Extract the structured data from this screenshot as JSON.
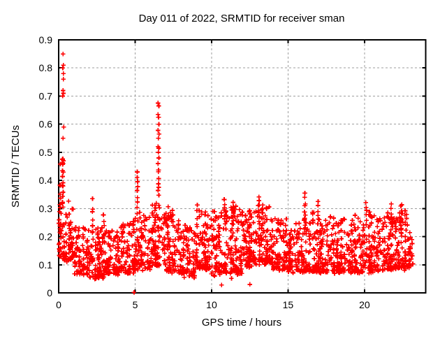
{
  "chart_data": {
    "type": "scatter",
    "title": "Day 011 of 2022, SRMTID for receiver sman",
    "xlabel": "GPS time / hours",
    "ylabel": "SRMTID / TECUs",
    "xlim": [
      0,
      24
    ],
    "ylim": [
      0,
      0.9
    ],
    "xticks": [
      0,
      5,
      10,
      15,
      20
    ],
    "yticks": [
      0,
      0.1,
      0.2,
      0.3,
      0.4,
      0.5,
      0.6,
      0.7,
      0.8,
      0.9
    ],
    "grid": true,
    "legend_position": "none",
    "x_data_range": [
      0,
      23
    ],
    "marker": {
      "shape": "plus",
      "color": "#ff0000",
      "size": 7
    },
    "colors": {
      "axis": "#000000",
      "grid": "#9e9e9e",
      "background": "#ffffff"
    },
    "outliers": [
      [
        0.28,
        0.85
      ],
      [
        0.3,
        0.81
      ],
      [
        0.27,
        0.8
      ],
      [
        0.3,
        0.78
      ],
      [
        0.3,
        0.76
      ],
      [
        0.28,
        0.72
      ],
      [
        0.3,
        0.71
      ],
      [
        0.26,
        0.7
      ],
      [
        0.33,
        0.59
      ],
      [
        0.28,
        0.55
      ],
      [
        0.25,
        0.475
      ],
      [
        0.3,
        0.47
      ],
      [
        0.28,
        0.46
      ],
      [
        6.5,
        0.675
      ],
      [
        6.55,
        0.665
      ],
      [
        6.5,
        0.635
      ],
      [
        6.53,
        0.625
      ],
      [
        6.55,
        0.6
      ],
      [
        6.5,
        0.578
      ],
      [
        6.56,
        0.565
      ],
      [
        6.52,
        0.55
      ],
      [
        6.5,
        0.52
      ],
      [
        6.55,
        0.515
      ],
      [
        6.52,
        0.5
      ],
      [
        6.55,
        0.48
      ],
      [
        6.5,
        0.46
      ],
      [
        4.93,
        0.002
      ],
      [
        10.65,
        0.028
      ],
      [
        12.5,
        0.03
      ],
      [
        11.3,
        0.052
      ],
      [
        10.2,
        0.06
      ]
    ],
    "columns": [
      {
        "x": 0.28,
        "lo": 0.3,
        "hi": 0.48,
        "n": 10
      },
      {
        "x": 2.2,
        "lo": 0.2,
        "hi": 0.345,
        "n": 6
      },
      {
        "x": 2.95,
        "lo": 0.18,
        "hi": 0.3,
        "n": 5
      },
      {
        "x": 5.15,
        "lo": 0.28,
        "hi": 0.445,
        "n": 9
      },
      {
        "x": 6.52,
        "lo": 0.34,
        "hi": 0.45,
        "n": 7
      },
      {
        "x": 7.15,
        "lo": 0.22,
        "hi": 0.31,
        "n": 5
      },
      {
        "x": 9.05,
        "lo": 0.22,
        "hi": 0.32,
        "n": 5
      },
      {
        "x": 10.85,
        "lo": 0.26,
        "hi": 0.34,
        "n": 6
      },
      {
        "x": 11.4,
        "lo": 0.24,
        "hi": 0.33,
        "n": 5
      },
      {
        "x": 13.1,
        "lo": 0.26,
        "hi": 0.35,
        "n": 6
      },
      {
        "x": 13.35,
        "lo": 0.24,
        "hi": 0.33,
        "n": 5
      },
      {
        "x": 16.1,
        "lo": 0.24,
        "hi": 0.36,
        "n": 8
      },
      {
        "x": 16.95,
        "lo": 0.24,
        "hi": 0.33,
        "n": 6
      },
      {
        "x": 20.1,
        "lo": 0.24,
        "hi": 0.33,
        "n": 6
      },
      {
        "x": 21.75,
        "lo": 0.24,
        "hi": 0.32,
        "n": 6
      },
      {
        "x": 22.4,
        "lo": 0.22,
        "hi": 0.325,
        "n": 8
      }
    ],
    "band": [
      {
        "x0": 0.0,
        "w": 0.35,
        "n": 45,
        "lo": 0.1,
        "hi": 0.48
      },
      {
        "x0": 0.35,
        "w": 0.65,
        "n": 60,
        "lo": 0.1,
        "hi": 0.33
      },
      {
        "x0": 1.0,
        "w": 1,
        "n": 85,
        "lo": 0.055,
        "hi": 0.24
      },
      {
        "x0": 2.0,
        "w": 1,
        "n": 85,
        "lo": 0.04,
        "hi": 0.26
      },
      {
        "x0": 3.0,
        "w": 1,
        "n": 85,
        "lo": 0.055,
        "hi": 0.23
      },
      {
        "x0": 4.0,
        "w": 1,
        "n": 85,
        "lo": 0.06,
        "hi": 0.27
      },
      {
        "x0": 5.0,
        "w": 1,
        "n": 90,
        "lo": 0.07,
        "hi": 0.3
      },
      {
        "x0": 6.0,
        "w": 1,
        "n": 95,
        "lo": 0.08,
        "hi": 0.33
      },
      {
        "x0": 7.0,
        "w": 1,
        "n": 90,
        "lo": 0.06,
        "hi": 0.3
      },
      {
        "x0": 8.0,
        "w": 1,
        "n": 85,
        "lo": 0.045,
        "hi": 0.26
      },
      {
        "x0": 9.0,
        "w": 1,
        "n": 90,
        "lo": 0.07,
        "hi": 0.3
      },
      {
        "x0": 10.0,
        "w": 1,
        "n": 90,
        "lo": 0.05,
        "hi": 0.3
      },
      {
        "x0": 11.0,
        "w": 1,
        "n": 95,
        "lo": 0.05,
        "hi": 0.32
      },
      {
        "x0": 12.0,
        "w": 1,
        "n": 95,
        "lo": 0.08,
        "hi": 0.3
      },
      {
        "x0": 13.0,
        "w": 1,
        "n": 95,
        "lo": 0.09,
        "hi": 0.32
      },
      {
        "x0": 14.0,
        "w": 1,
        "n": 90,
        "lo": 0.07,
        "hi": 0.27
      },
      {
        "x0": 15.0,
        "w": 1,
        "n": 85,
        "lo": 0.06,
        "hi": 0.26
      },
      {
        "x0": 16.0,
        "w": 1,
        "n": 90,
        "lo": 0.06,
        "hi": 0.3
      },
      {
        "x0": 17.0,
        "w": 1,
        "n": 90,
        "lo": 0.06,
        "hi": 0.28
      },
      {
        "x0": 18.0,
        "w": 1,
        "n": 90,
        "lo": 0.06,
        "hi": 0.28
      },
      {
        "x0": 19.0,
        "w": 1,
        "n": 90,
        "lo": 0.06,
        "hi": 0.28
      },
      {
        "x0": 20.0,
        "w": 1,
        "n": 90,
        "lo": 0.06,
        "hi": 0.29
      },
      {
        "x0": 21.0,
        "w": 1,
        "n": 90,
        "lo": 0.07,
        "hi": 0.29
      },
      {
        "x0": 22.0,
        "w": 1,
        "n": 95,
        "lo": 0.07,
        "hi": 0.31
      },
      {
        "x0": 23.0,
        "w": 0.15,
        "n": 10,
        "lo": 0.08,
        "hi": 0.2
      }
    ],
    "generator": {
      "seed": 20220111
    }
  }
}
